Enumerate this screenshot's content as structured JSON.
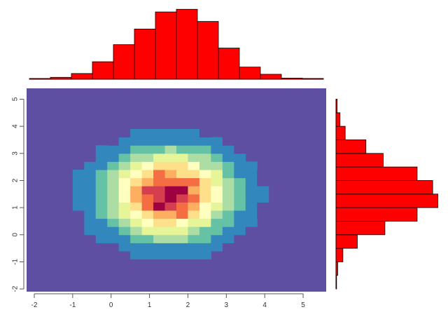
{
  "chart_data": [
    {
      "type": "heatmap",
      "description_role": "2D density heatmap (main panel)",
      "xlim": [
        -2.2,
        5.6
      ],
      "ylim": [
        -2.1,
        5.4
      ],
      "x_ticks": [
        -2,
        -1,
        0,
        1,
        2,
        3,
        4,
        5
      ],
      "y_ticks": [
        -2,
        -1,
        0,
        1,
        2,
        3,
        4,
        5
      ],
      "x_tick_labels": [
        "-2",
        "-1",
        "0",
        "1",
        "2",
        "3",
        "4",
        "5"
      ],
      "y_tick_labels": [
        "-2",
        "-1",
        "0",
        "1",
        "2",
        "3",
        "4",
        "5"
      ],
      "center": [
        1.5,
        1.5
      ],
      "sd": [
        1.0,
        1.0
      ],
      "bin_width": 0.3,
      "palette": [
        "#5E4FA2",
        "#3288BD",
        "#66C2A5",
        "#ABDDA4",
        "#E6F598",
        "#FFFFBF",
        "#FEE08B",
        "#FDAE61",
        "#F46D43",
        "#D53E4F",
        "#9E0142"
      ],
      "background_color": "#5E4FA2",
      "grid": false
    },
    {
      "type": "bar",
      "description_role": "marginal histogram of x (top)",
      "bin_edges": [
        -1.5,
        -1,
        -0.5,
        0,
        0.5,
        1,
        1.5,
        2,
        2.5,
        3,
        3.5,
        4,
        4.5,
        5,
        5.5
      ],
      "values": [
        2,
        5,
        15,
        46,
        91,
        132,
        177,
        184,
        152,
        82,
        32,
        13,
        3,
        2
      ],
      "ylim": [
        0,
        190
      ],
      "bar_color": "#FF0000",
      "edge_color": "#000000"
    },
    {
      "type": "bar",
      "orientation": "horizontal",
      "description_role": "marginal histogram of y (right)",
      "bin_edges": [
        -2,
        -1.5,
        -1,
        -0.5,
        0,
        0.5,
        1,
        1.5,
        2,
        2.5,
        3,
        3.5,
        4,
        4.5,
        5
      ],
      "values": [
        1,
        3,
        12,
        37,
        85,
        141,
        177,
        168,
        141,
        82,
        52,
        16,
        7,
        2
      ],
      "xlim": [
        0,
        180
      ],
      "bar_color": "#FF0000",
      "edge_color": "#000000"
    }
  ]
}
